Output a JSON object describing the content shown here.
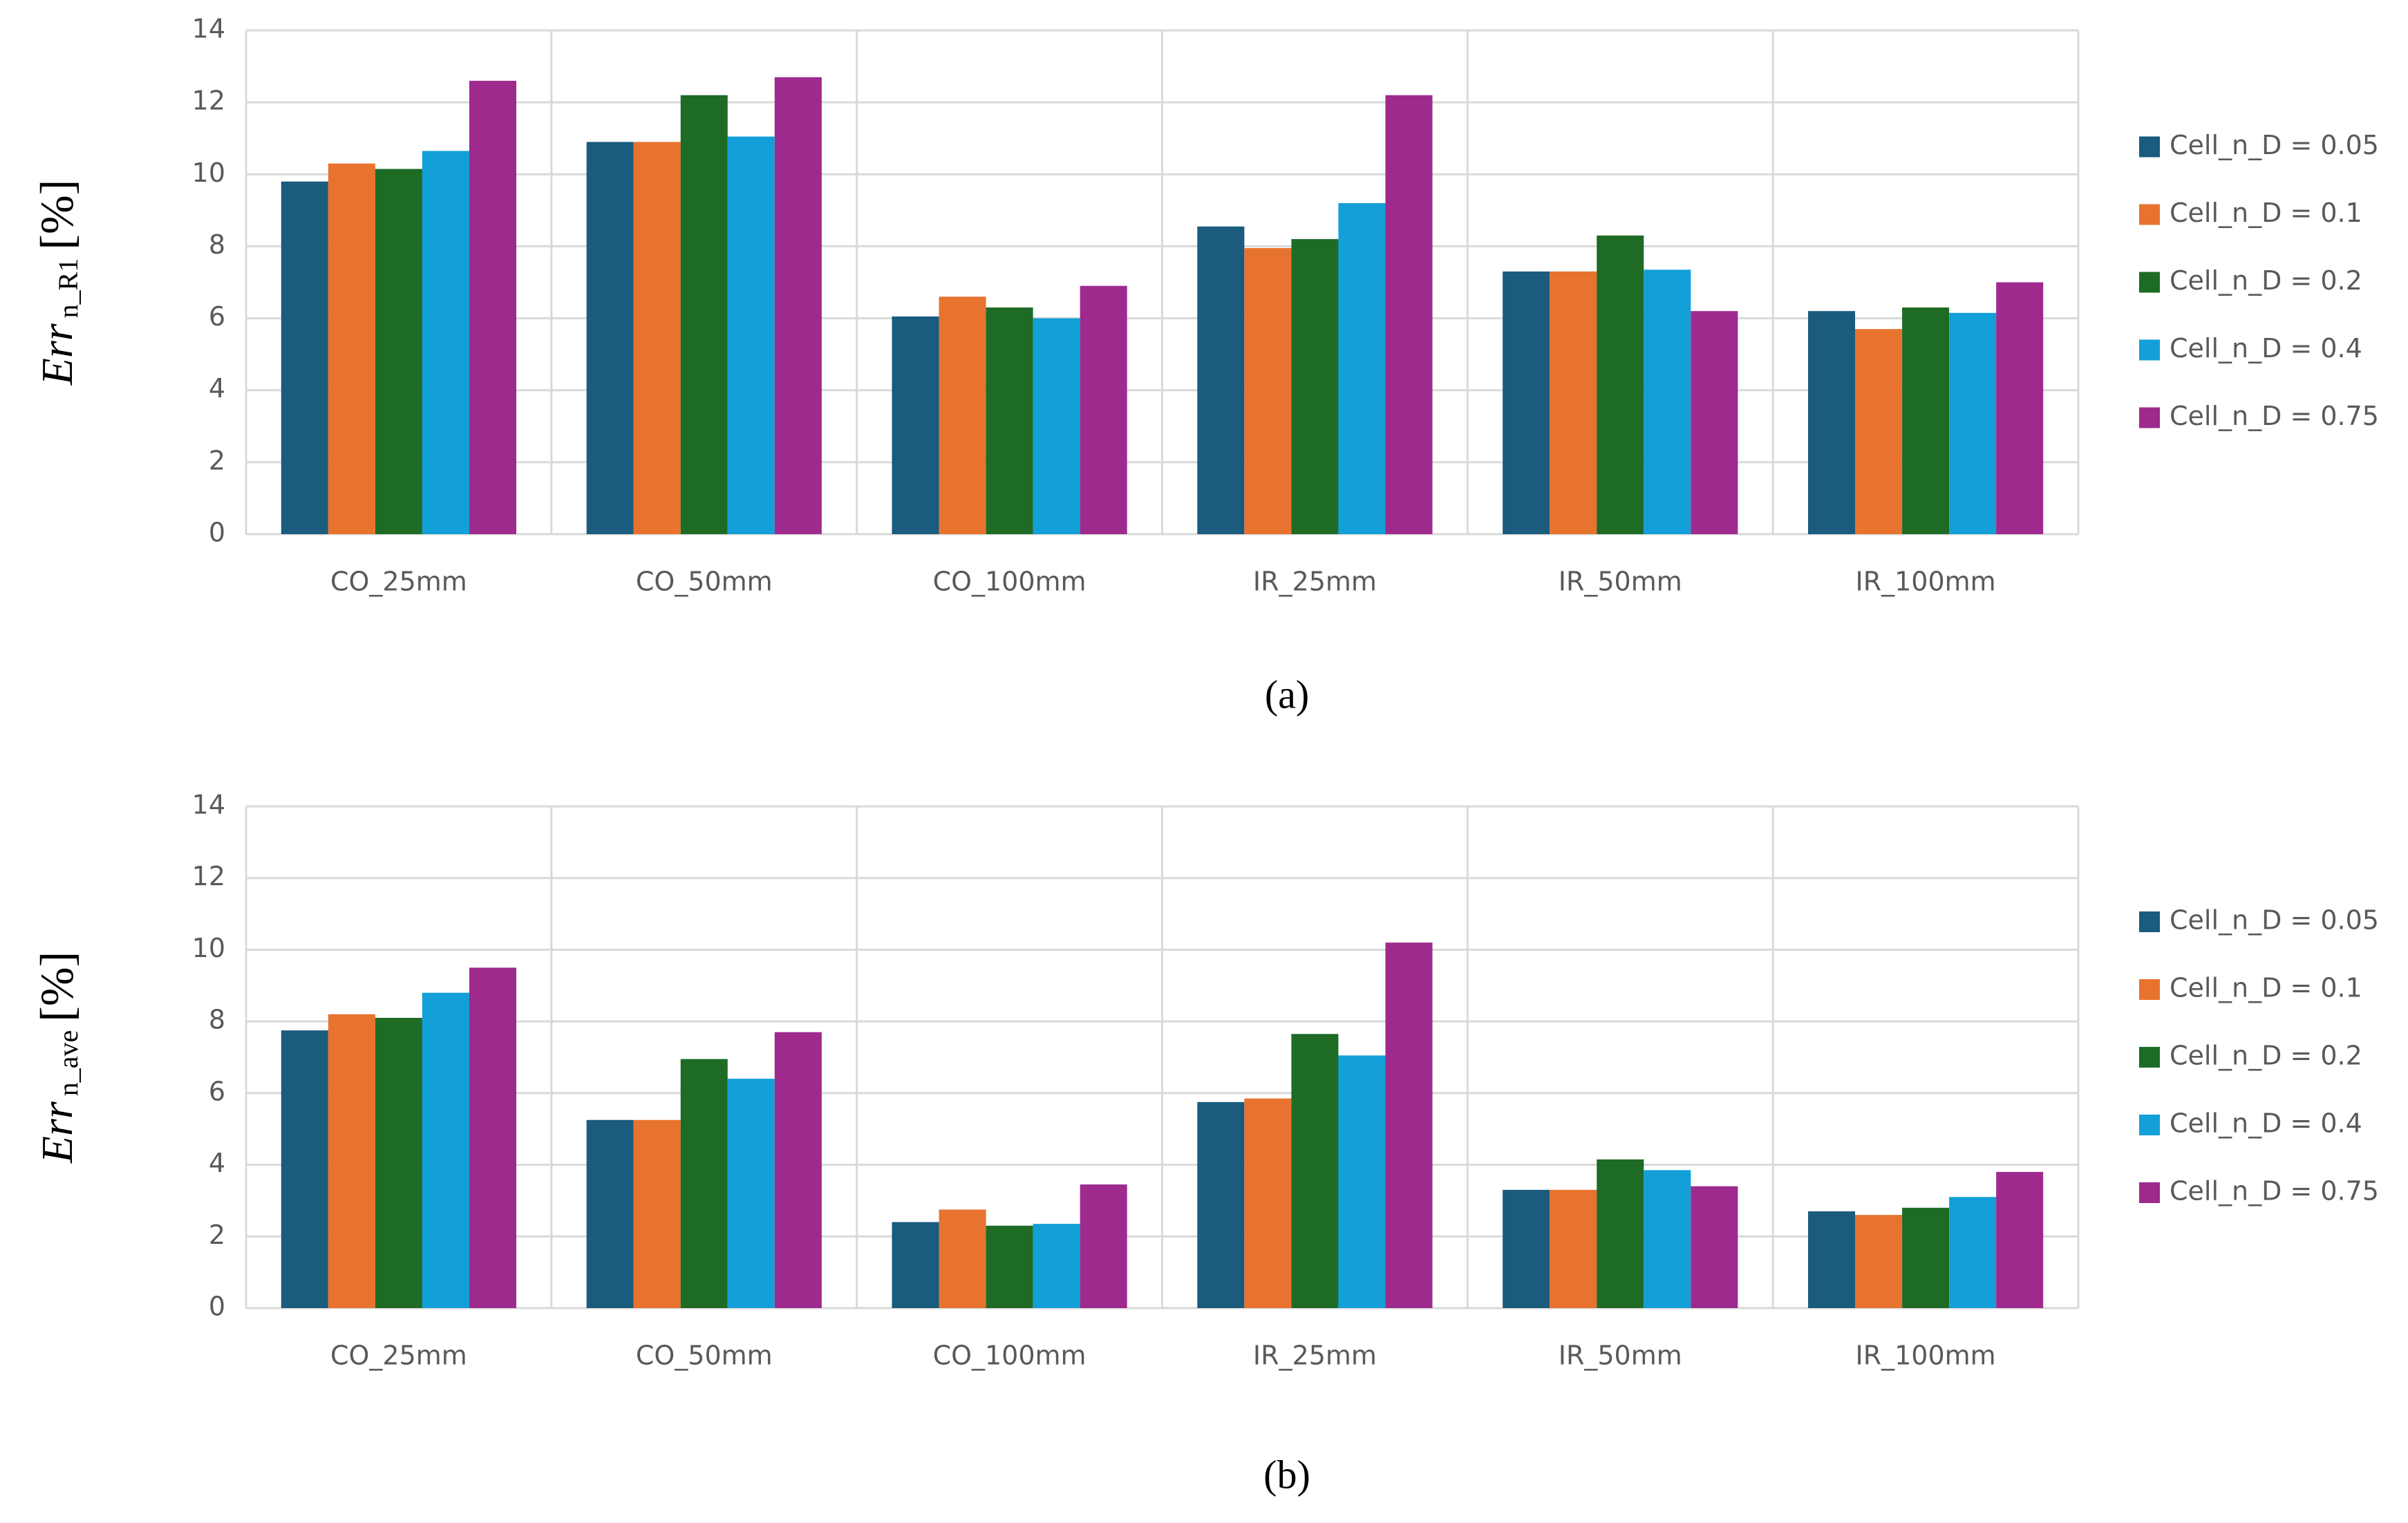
{
  "chart_data": [
    {
      "type": "bar",
      "caption": "(a)",
      "y_label": {
        "text": "Err",
        "subscript": "n_R1",
        "unit": "[%]"
      },
      "categories": [
        "CO_25mm",
        "CO_50mm",
        "CO_100mm",
        "IR_25mm",
        "IR_50mm",
        "IR_100mm"
      ],
      "series": [
        {
          "name": "Cell_n_D = 0.05",
          "color": "#1a5b7e",
          "values": [
            9.8,
            10.9,
            6.05,
            8.55,
            7.3,
            6.2
          ]
        },
        {
          "name": "Cell_n_D = 0.1",
          "color": "#e8732f",
          "values": [
            10.3,
            10.9,
            6.6,
            7.95,
            7.3,
            5.7
          ]
        },
        {
          "name": "Cell_n_D = 0.2",
          "color": "#1e6b26",
          "values": [
            10.15,
            12.2,
            6.3,
            8.2,
            8.3,
            6.3
          ]
        },
        {
          "name": "Cell_n_D = 0.4",
          "color": "#139fd8",
          "values": [
            10.65,
            11.05,
            6.0,
            9.2,
            7.35,
            6.15
          ]
        },
        {
          "name": "Cell_n_D = 0.75",
          "color": "#9e2a8e",
          "values": [
            12.6,
            12.7,
            6.9,
            12.2,
            6.2,
            7.0
          ]
        }
      ],
      "ylim": [
        0,
        14
      ],
      "yticks": [
        0,
        2,
        4,
        6,
        8,
        10,
        12,
        14
      ],
      "grid": true,
      "legend": "right"
    },
    {
      "type": "bar",
      "caption": "(b)",
      "y_label": {
        "text": "Err",
        "subscript": "n_ave",
        "unit": "[%]"
      },
      "categories": [
        "CO_25mm",
        "CO_50mm",
        "CO_100mm",
        "IR_25mm",
        "IR_50mm",
        "IR_100mm"
      ],
      "series": [
        {
          "name": "Cell_n_D = 0.05",
          "color": "#1a5b7e",
          "values": [
            7.75,
            5.25,
            2.4,
            5.75,
            3.3,
            2.7
          ]
        },
        {
          "name": "Cell_n_D = 0.1",
          "color": "#e8732f",
          "values": [
            8.2,
            5.25,
            2.75,
            5.85,
            3.3,
            2.6
          ]
        },
        {
          "name": "Cell_n_D = 0.2",
          "color": "#1e6b26",
          "values": [
            8.1,
            6.95,
            2.3,
            7.65,
            4.15,
            2.8
          ]
        },
        {
          "name": "Cell_n_D = 0.4",
          "color": "#139fd8",
          "values": [
            8.8,
            6.4,
            2.35,
            7.05,
            3.85,
            3.1
          ]
        },
        {
          "name": "Cell_n_D = 0.75",
          "color": "#9e2a8e",
          "values": [
            9.5,
            7.7,
            3.45,
            10.2,
            3.4,
            3.8
          ]
        }
      ],
      "ylim": [
        0,
        14
      ],
      "yticks": [
        0,
        2,
        4,
        6,
        8,
        10,
        12,
        14
      ],
      "grid": true,
      "legend": "right"
    }
  ]
}
